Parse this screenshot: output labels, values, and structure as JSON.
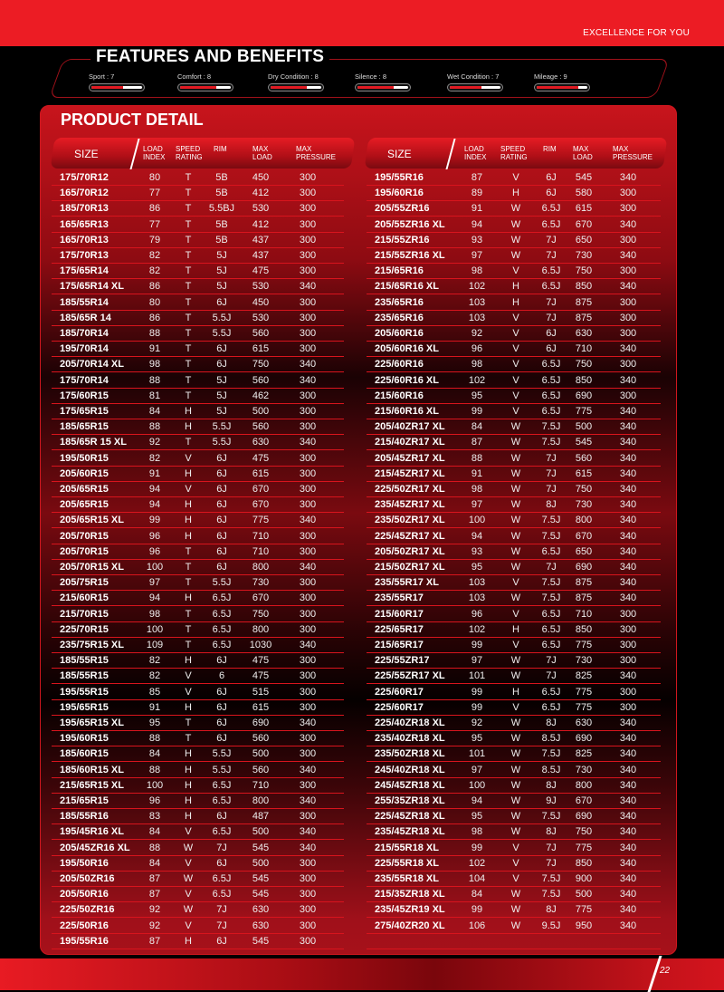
{
  "header": {
    "tagline": "EXCELLENCE FOR YOU"
  },
  "features": {
    "title": "FEATURES AND BENEFITS",
    "items": [
      {
        "label": "Sport : 7",
        "score": 7,
        "max": 10
      },
      {
        "label": "Comfort : 8",
        "score": 8,
        "max": 10
      },
      {
        "label": "Dry Condition : 8",
        "score": 8,
        "max": 10
      },
      {
        "label": "Silence : 8",
        "score": 8,
        "max": 10
      },
      {
        "label": "Wet Condition : 7",
        "score": 7,
        "max": 10
      },
      {
        "label": "Mileage : 9",
        "score": 9,
        "max": 10
      }
    ]
  },
  "product": {
    "title": "PRODUCT DETAIL",
    "columns": [
      "SIZE",
      "LOAD INDEX",
      "SPEED RATING",
      "RIM",
      "MAX LOAD",
      "MAX PRESSURE"
    ],
    "left_rows": [
      [
        "175/70R12",
        "80",
        "T",
        "5B",
        "450",
        "300"
      ],
      [
        "165/70R12",
        "77",
        "T",
        "5B",
        "412",
        "300"
      ],
      [
        "185/70R13",
        "86",
        "T",
        "5.5BJ",
        "530",
        "300"
      ],
      [
        "165/65R13",
        "77",
        "T",
        "5B",
        "412",
        "300"
      ],
      [
        "165/70R13",
        "79",
        "T",
        "5B",
        "437",
        "300"
      ],
      [
        "175/70R13",
        "82",
        "T",
        "5J",
        "437",
        "300"
      ],
      [
        "175/65R14",
        "82",
        "T",
        "5J",
        "475",
        "300"
      ],
      [
        "175/65R14 XL",
        "86",
        "T",
        "5J",
        "530",
        "340"
      ],
      [
        "185/55R14",
        "80",
        "T",
        "6J",
        "450",
        "300"
      ],
      [
        "185/65R 14",
        "86",
        "T",
        "5.5J",
        "530",
        "300"
      ],
      [
        "185/70R14",
        "88",
        "T",
        "5.5J",
        "560",
        "300"
      ],
      [
        "195/70R14",
        "91",
        "T",
        "6J",
        "615",
        "300"
      ],
      [
        "205/70R14 XL",
        "98",
        "T",
        "6J",
        "750",
        "340"
      ],
      [
        "175/70R14",
        "88",
        "T",
        "5J",
        "560",
        "340"
      ],
      [
        "175/60R15",
        "81",
        "T",
        "5J",
        "462",
        "300"
      ],
      [
        "175/65R15",
        "84",
        "H",
        "5J",
        "500",
        "300"
      ],
      [
        "185/65R15",
        "88",
        "H",
        "5.5J",
        "560",
        "300"
      ],
      [
        "185/65R 15 XL",
        "92",
        "T",
        "5.5J",
        "630",
        "340"
      ],
      [
        "195/50R15",
        "82",
        "V",
        "6J",
        "475",
        "300"
      ],
      [
        "205/60R15",
        "91",
        "H",
        "6J",
        "615",
        "300"
      ],
      [
        "205/65R15",
        "94",
        "V",
        "6J",
        "670",
        "300"
      ],
      [
        "205/65R15",
        "94",
        "H",
        "6J",
        "670",
        "300"
      ],
      [
        "205/65R15 XL",
        "99",
        "H",
        "6J",
        "775",
        "340"
      ],
      [
        "205/70R15",
        "96",
        "H",
        "6J",
        "710",
        "300"
      ],
      [
        "205/70R15",
        "96",
        "T",
        "6J",
        "710",
        "300"
      ],
      [
        "205/70R15 XL",
        "100",
        "T",
        "6J",
        "800",
        "340"
      ],
      [
        "205/75R15",
        "97",
        "T",
        "5.5J",
        "730",
        "300"
      ],
      [
        "215/60R15",
        "94",
        "H",
        "6.5J",
        "670",
        "300"
      ],
      [
        "215/70R15",
        "98",
        "T",
        "6.5J",
        "750",
        "300"
      ],
      [
        "225/70R15",
        "100",
        "T",
        "6.5J",
        "800",
        "300"
      ],
      [
        "235/75R15 XL",
        "109",
        "T",
        "6.5J",
        "1030",
        "340"
      ],
      [
        "185/55R15",
        "82",
        "H",
        "6J",
        "475",
        "300"
      ],
      [
        "185/55R15",
        "82",
        "V",
        "6",
        "475",
        "300"
      ],
      [
        "195/55R15",
        "85",
        "V",
        "6J",
        "515",
        "300"
      ],
      [
        "195/65R15",
        "91",
        "H",
        "6J",
        "615",
        "300"
      ],
      [
        "195/65R15 XL",
        "95",
        "T",
        "6J",
        "690",
        "340"
      ],
      [
        "195/60R15",
        "88",
        "T",
        "6J",
        "560",
        "300"
      ],
      [
        "185/60R15",
        "84",
        "H",
        "5.5J",
        "500",
        "300"
      ],
      [
        "185/60R15 XL",
        "88",
        "H",
        "5.5J",
        "560",
        "340"
      ],
      [
        "215/65R15 XL",
        "100",
        "H",
        "6.5J",
        "710",
        "300"
      ],
      [
        "215/65R15",
        "96",
        "H",
        "6.5J",
        "800",
        "340"
      ],
      [
        "185/55R16",
        "83",
        "H",
        "6J",
        "487",
        "300"
      ],
      [
        "195/45R16 XL",
        "84",
        "V",
        "6.5J",
        "500",
        "340"
      ],
      [
        "205/45ZR16 XL",
        "88",
        "W",
        "7J",
        "545",
        "340"
      ],
      [
        "195/50R16",
        "84",
        "V",
        "6J",
        "500",
        "300"
      ],
      [
        "205/50ZR16",
        "87",
        "W",
        "6.5J",
        "545",
        "300"
      ],
      [
        "205/50R16",
        "87",
        "V",
        "6.5J",
        "545",
        "300"
      ],
      [
        "225/50ZR16",
        "92",
        "W",
        "7J",
        "630",
        "300"
      ],
      [
        "225/50R16",
        "92",
        "V",
        "7J",
        "630",
        "300"
      ],
      [
        "195/55R16",
        "87",
        "H",
        "6J",
        "545",
        "300"
      ]
    ],
    "right_rows": [
      [
        "195/55R16",
        "87",
        "V",
        "6J",
        "545",
        "340"
      ],
      [
        "195/60R16",
        "89",
        "H",
        "6J",
        "580",
        "300"
      ],
      [
        "205/55ZR16",
        "91",
        "W",
        "6.5J",
        "615",
        "300"
      ],
      [
        "205/55ZR16 XL",
        "94",
        "W",
        "6.5J",
        "670",
        "340"
      ],
      [
        "215/55ZR16",
        "93",
        "W",
        "7J",
        "650",
        "300"
      ],
      [
        "215/55ZR16 XL",
        "97",
        "W",
        "7J",
        "730",
        "340"
      ],
      [
        "215/65R16",
        "98",
        "V",
        "6.5J",
        "750",
        "300"
      ],
      [
        "215/65R16 XL",
        "102",
        "H",
        "6.5J",
        "850",
        "340"
      ],
      [
        "235/65R16",
        "103",
        "H",
        "7J",
        "875",
        "300"
      ],
      [
        "235/65R16",
        "103",
        "V",
        "7J",
        "875",
        "300"
      ],
      [
        "205/60R16",
        "92",
        "V",
        "6J",
        "630",
        "300"
      ],
      [
        "205/60R16 XL",
        "96",
        "V",
        "6J",
        "710",
        "340"
      ],
      [
        "225/60R16",
        "98",
        "V",
        "6.5J",
        "750",
        "300"
      ],
      [
        "225/60R16 XL",
        "102",
        "V",
        "6.5J",
        "850",
        "340"
      ],
      [
        "215/60R16",
        "95",
        "V",
        "6.5J",
        "690",
        "300"
      ],
      [
        "215/60R16 XL",
        "99",
        "V",
        "6.5J",
        "775",
        "340"
      ],
      [
        "205/40ZR17 XL",
        "84",
        "W",
        "7.5J",
        "500",
        "340"
      ],
      [
        "215/40ZR17 XL",
        "87",
        "W",
        "7.5J",
        "545",
        "340"
      ],
      [
        "205/45ZR17 XL",
        "88",
        "W",
        "7J",
        "560",
        "340"
      ],
      [
        "215/45ZR17 XL",
        "91",
        "W",
        "7J",
        "615",
        "340"
      ],
      [
        "225/50ZR17 XL",
        "98",
        "W",
        "7J",
        "750",
        "340"
      ],
      [
        "235/45ZR17 XL",
        "97",
        "W",
        "8J",
        "730",
        "340"
      ],
      [
        "235/50ZR17 XL",
        "100",
        "W",
        "7.5J",
        "800",
        "340"
      ],
      [
        "225/45ZR17 XL",
        "94",
        "W",
        "7.5J",
        "670",
        "340"
      ],
      [
        "205/50ZR17 XL",
        "93",
        "W",
        "6.5J",
        "650",
        "340"
      ],
      [
        "215/50ZR17 XL",
        "95",
        "W",
        "7J",
        "690",
        "340"
      ],
      [
        "235/55R17 XL",
        "103",
        "V",
        "7.5J",
        "875",
        "340"
      ],
      [
        "235/55R17",
        "103",
        "W",
        "7.5J",
        "875",
        "340"
      ],
      [
        "215/60R17",
        "96",
        "V",
        "6.5J",
        "710",
        "300"
      ],
      [
        "225/65R17",
        "102",
        "H",
        "6.5J",
        "850",
        "300"
      ],
      [
        "215/65R17",
        "99",
        "V",
        "6.5J",
        "775",
        "300"
      ],
      [
        "225/55ZR17",
        "97",
        "W",
        "7J",
        "730",
        "300"
      ],
      [
        "225/55ZR17 XL",
        "101",
        "W",
        "7J",
        "825",
        "340"
      ],
      [
        "225/60R17",
        "99",
        "H",
        "6.5J",
        "775",
        "300"
      ],
      [
        "225/60R17",
        "99",
        "V",
        "6.5J",
        "775",
        "300"
      ],
      [
        "225/40ZR18 XL",
        "92",
        "W",
        "8J",
        "630",
        "340"
      ],
      [
        "235/40ZR18 XL",
        "95",
        "W",
        "8.5J",
        "690",
        "340"
      ],
      [
        "235/50ZR18 XL",
        "101",
        "W",
        "7.5J",
        "825",
        "340"
      ],
      [
        "245/40ZR18 XL",
        "97",
        "W",
        "8.5J",
        "730",
        "340"
      ],
      [
        "245/45ZR18 XL",
        "100",
        "W",
        "8J",
        "800",
        "340"
      ],
      [
        "255/35ZR18 XL",
        "94",
        "W",
        "9J",
        "670",
        "340"
      ],
      [
        "225/45ZR18 XL",
        "95",
        "W",
        "7.5J",
        "690",
        "340"
      ],
      [
        "235/45ZR18 XL",
        "98",
        "W",
        "8J",
        "750",
        "340"
      ],
      [
        "215/55R18 XL",
        "99",
        "V",
        "7J",
        "775",
        "340"
      ],
      [
        "225/55R18 XL",
        "102",
        "V",
        "7J",
        "850",
        "340"
      ],
      [
        "235/55R18 XL",
        "104",
        "V",
        "7.5J",
        "900",
        "340"
      ],
      [
        "215/35ZR18 XL",
        "84",
        "W",
        "7.5J",
        "500",
        "340"
      ],
      [
        "235/45ZR19 XL",
        "99",
        "W",
        "8J",
        "775",
        "340"
      ],
      [
        "275/40ZR20 XL",
        "106",
        "W",
        "9.5J",
        "950",
        "340"
      ]
    ]
  },
  "footer": {
    "page_number": "22"
  },
  "colors": {
    "brand_red": "#ec1c24",
    "background": "#000000"
  }
}
